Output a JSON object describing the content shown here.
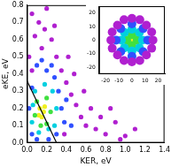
{
  "chart_data": [
    {
      "type": "scatter",
      "x_label": "KER, eV",
      "y_label": "eKE, eV",
      "xlim": [
        0,
        1.4
      ],
      "ylim": [
        0,
        0.8
      ],
      "xticks": [
        {
          "value": 0,
          "label": "0.0"
        },
        0.2,
        0.4,
        0.6,
        0.8,
        {
          "value": 1,
          "label": "1.0"
        },
        1.2,
        1.4
      ],
      "yticks": [
        {
          "value": 0,
          "label": "0.0"
        },
        0.1,
        0.2,
        0.3,
        0.4,
        0.5,
        0.6,
        0.7,
        0.8
      ],
      "grid": false,
      "series": [
        {
          "color": "#b020d0",
          "values": [
            [
              0.05,
              0.75
            ],
            [
              0.12,
              0.7
            ],
            [
              0.2,
              0.78
            ],
            [
              0.08,
              0.62
            ],
            [
              0.25,
              0.6
            ],
            [
              0.15,
              0.55
            ],
            [
              0.3,
              0.5
            ],
            [
              0.02,
              0.5
            ],
            [
              0.35,
              0.42
            ],
            [
              0.4,
              0.35
            ],
            [
              0.45,
              0.28
            ],
            [
              0.5,
              0.22
            ],
            [
              0.55,
              0.15
            ],
            [
              0.6,
              0.1
            ],
            [
              0.7,
              0.08
            ],
            [
              0.8,
              0.05
            ],
            [
              0.9,
              0.12
            ],
            [
              1.0,
              0.04
            ],
            [
              0.65,
              0.2
            ],
            [
              0.48,
              0.4
            ],
            [
              0.28,
              0.68
            ],
            [
              0.18,
              0.66
            ],
            [
              0.05,
              0.42
            ],
            [
              0.38,
              0.05
            ],
            [
              0.75,
              0.15
            ],
            [
              0.85,
              0.2
            ],
            [
              0.58,
              0.3
            ],
            [
              1.1,
              0.08
            ],
            [
              0.95,
              0.02
            ],
            [
              0.42,
              0.5
            ]
          ]
        },
        {
          "color": "#3050ff",
          "values": [
            [
              0.1,
              0.45
            ],
            [
              0.2,
              0.42
            ],
            [
              0.28,
              0.38
            ],
            [
              0.05,
              0.32
            ],
            [
              0.32,
              0.3
            ],
            [
              0.35,
              0.2
            ],
            [
              0.38,
              0.12
            ],
            [
              0.02,
              0.2
            ],
            [
              0.05,
              0.05
            ],
            [
              0.3,
              0.05
            ],
            [
              0.15,
              0.48
            ],
            [
              0.25,
              0.45
            ],
            [
              0.4,
              0.25
            ],
            [
              0.45,
              0.1
            ],
            [
              0.1,
              0.02
            ],
            [
              0.22,
              0.02
            ]
          ]
        },
        {
          "color": "#00d0e0",
          "values": [
            [
              0.08,
              0.3
            ],
            [
              0.18,
              0.34
            ],
            [
              0.26,
              0.3
            ],
            [
              0.3,
              0.2
            ],
            [
              0.28,
              0.1
            ],
            [
              0.05,
              0.12
            ],
            [
              0.12,
              0.06
            ],
            [
              0.22,
              0.08
            ],
            [
              0.06,
              0.22
            ]
          ]
        },
        {
          "color": "#40e040",
          "values": [
            [
              0.1,
              0.24
            ],
            [
              0.2,
              0.26
            ],
            [
              0.24,
              0.18
            ],
            [
              0.08,
              0.16
            ],
            [
              0.2,
              0.11
            ],
            [
              0.14,
              0.1
            ]
          ]
        },
        {
          "color": "#f0f020",
          "values": [
            [
              0.13,
              0.2
            ],
            [
              0.17,
              0.18
            ],
            [
              0.15,
              0.15
            ],
            [
              0.12,
              0.16
            ],
            [
              0.18,
              0.21
            ]
          ]
        },
        {
          "type": "line",
          "color": "#000000",
          "values": [
            [
              0,
              0.36
            ],
            [
              0.3,
              0
            ]
          ]
        }
      ]
    },
    {
      "type": "scatter",
      "xlim": [
        -25,
        25
      ],
      "ylim": [
        -25,
        25
      ],
      "xticks": [
        -20,
        -10,
        0,
        10,
        20
      ],
      "yticks": [
        -20,
        -10,
        0,
        10,
        20
      ],
      "grid": false,
      "series": [
        {
          "color": "#b020d0",
          "values": [
            [
              16,
              0
            ],
            [
              11,
              11
            ],
            [
              0,
              16
            ],
            [
              -11,
              11
            ],
            [
              -16,
              0
            ],
            [
              -11,
              -11
            ],
            [
              0,
              -16
            ],
            [
              11,
              -11
            ],
            [
              15,
              6
            ],
            [
              -6,
              15
            ],
            [
              -15,
              -6
            ],
            [
              6,
              -15
            ],
            [
              6,
              15
            ],
            [
              -15,
              6
            ],
            [
              -6,
              -15
            ],
            [
              15,
              -6
            ]
          ]
        },
        {
          "color": "#3050ff",
          "values": [
            [
              12,
              0
            ],
            [
              8.5,
              8.5
            ],
            [
              0,
              12
            ],
            [
              -8.5,
              8.5
            ],
            [
              -12,
              0
            ],
            [
              -8.5,
              -8.5
            ],
            [
              0,
              -12
            ],
            [
              8.5,
              -8.5
            ]
          ]
        },
        {
          "color": "#00d0e0",
          "values": [
            [
              8,
              0
            ],
            [
              0,
              8
            ],
            [
              -8,
              0
            ],
            [
              0,
              -8
            ],
            [
              5.7,
              5.7
            ],
            [
              -5.7,
              5.7
            ],
            [
              -5.7,
              -5.7
            ],
            [
              5.7,
              -5.7
            ]
          ]
        },
        {
          "color": "#40e040",
          "values": [
            [
              4,
              0
            ],
            [
              0,
              4
            ],
            [
              -4,
              0
            ],
            [
              0,
              -4
            ]
          ]
        },
        {
          "color": "#f0f020",
          "values": [
            [
              0,
              0
            ],
            [
              1.5,
              1
            ],
            [
              -1,
              -1.5
            ]
          ]
        }
      ]
    }
  ]
}
